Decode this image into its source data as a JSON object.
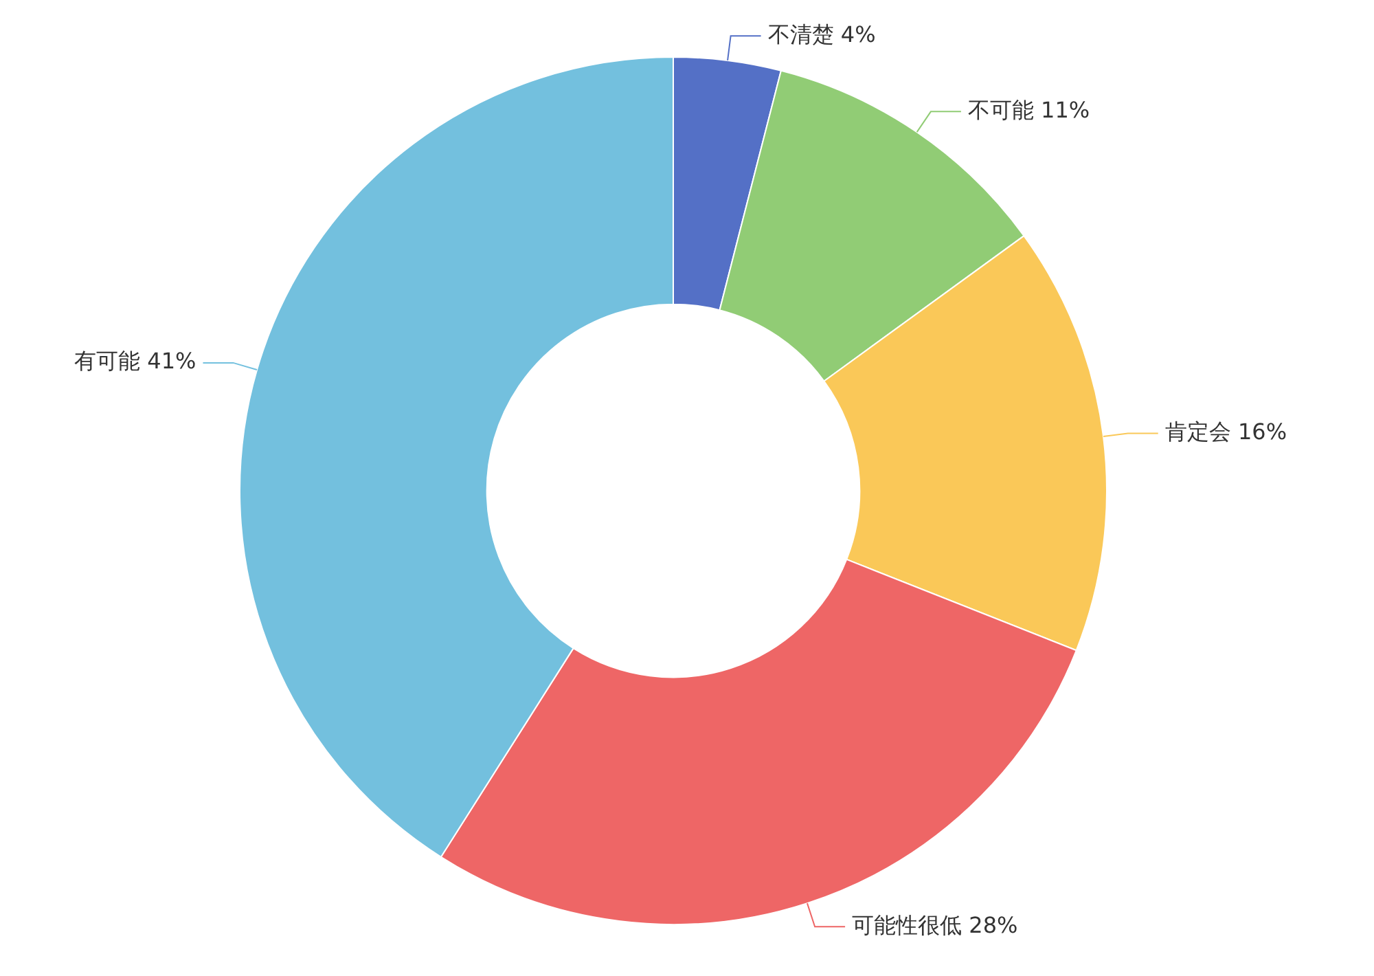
{
  "chart_data": {
    "type": "donut",
    "categories": [
      "不清楚",
      "不可能",
      "肯定会",
      "可能性很低",
      "有可能"
    ],
    "values": [
      4,
      11,
      16,
      28,
      41
    ],
    "value_labels": [
      "4%",
      "11%",
      "16%",
      "28%",
      "41%"
    ],
    "colors": [
      "#5470c6",
      "#91cc75",
      "#fac858",
      "#ee6666",
      "#73c0de"
    ],
    "legend": false
  }
}
